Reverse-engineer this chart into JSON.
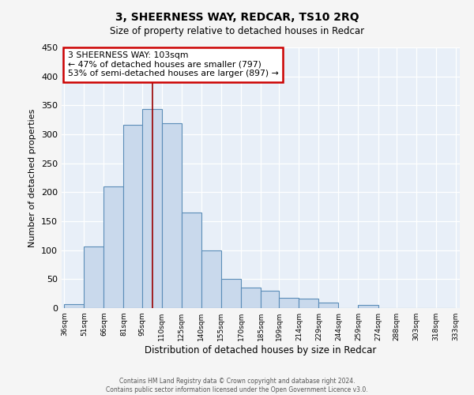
{
  "title": "3, SHEERNESS WAY, REDCAR, TS10 2RQ",
  "subtitle": "Size of property relative to detached houses in Redcar",
  "xlabel": "Distribution of detached houses by size in Redcar",
  "ylabel": "Number of detached properties",
  "bar_edges": [
    36,
    51,
    66,
    81,
    95,
    110,
    125,
    140,
    155,
    170,
    185,
    199,
    214,
    229,
    244,
    259,
    274,
    288,
    303,
    318,
    333
  ],
  "bar_heights": [
    7,
    106,
    210,
    317,
    343,
    319,
    165,
    99,
    50,
    36,
    30,
    18,
    17,
    10,
    0,
    5,
    0,
    0,
    0,
    0
  ],
  "bar_labels": [
    "36sqm",
    "51sqm",
    "66sqm",
    "81sqm",
    "95sqm",
    "110sqm",
    "125sqm",
    "140sqm",
    "155sqm",
    "170sqm",
    "185sqm",
    "199sqm",
    "214sqm",
    "229sqm",
    "244sqm",
    "259sqm",
    "274sqm",
    "288sqm",
    "303sqm",
    "318sqm",
    "333sqm"
  ],
  "bar_facecolor": "#c9d9ec",
  "bar_edgecolor": "#5b8db8",
  "vline_x": 103,
  "vline_color": "#990000",
  "annotation_line1": "3 SHEERNESS WAY: 103sqm",
  "annotation_line2": "← 47% of detached houses are smaller (797)",
  "annotation_line3": "53% of semi-detached houses are larger (897) →",
  "annotation_box_color": "#ffffff",
  "annotation_box_edgecolor": "#cc0000",
  "ylim": [
    0,
    450
  ],
  "background_color": "#e8eff8",
  "fig_background": "#f5f5f5",
  "footer1": "Contains HM Land Registry data © Crown copyright and database right 2024.",
  "footer2": "Contains public sector information licensed under the Open Government Licence v3.0."
}
